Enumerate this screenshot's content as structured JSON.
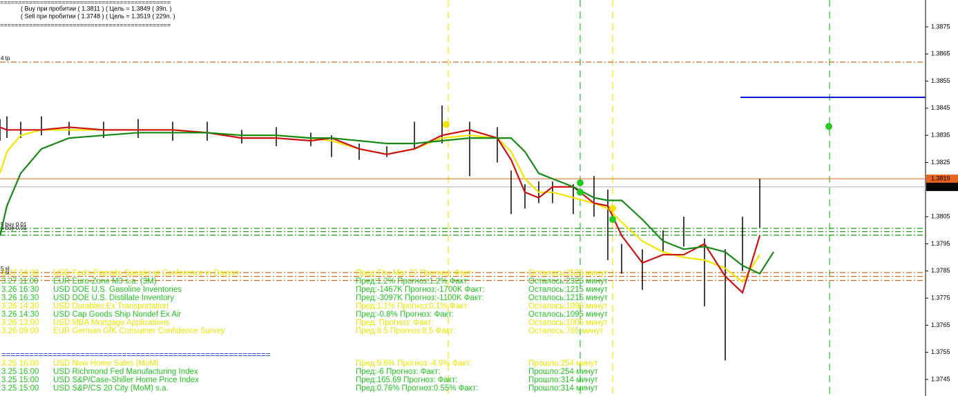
{
  "chart_data": {
    "type": "line",
    "x": [
      0,
      2,
      6,
      12,
      20,
      30,
      40,
      50,
      60,
      70,
      80,
      90,
      96,
      104,
      112,
      120,
      128,
      136,
      144,
      148,
      152,
      156,
      160,
      166,
      172,
      176,
      180,
      186,
      192,
      198,
      204,
      210,
      215,
      220,
      224
    ],
    "xlim": [
      0,
      268
    ],
    "ylim": [
      1.37389,
      1.38849
    ],
    "yticks": [
      1.3875,
      1.3865,
      1.3855,
      1.3845,
      1.3835,
      1.3825,
      1.3805,
      1.3795,
      1.3785,
      1.3775,
      1.3765,
      1.3755,
      1.3745
    ],
    "series": [
      {
        "color": "#f5e400",
        "values": [
          1.3821,
          1.3829,
          1.3835,
          1.3837,
          1.3837,
          1.3837,
          1.3837,
          1.3837,
          1.3836,
          1.3835,
          1.3835,
          1.3834,
          1.3833,
          1.383,
          1.3828,
          1.383,
          1.3834,
          1.3835,
          1.3834,
          1.3829,
          1.3819,
          1.3814,
          1.3814,
          1.3812,
          1.381,
          1.3808,
          1.3803,
          1.3796,
          1.3792,
          1.379,
          1.3789,
          1.3786,
          1.3781,
          1.3791,
          null
        ]
      },
      {
        "color": "#cc1010",
        "values": [
          1.3838,
          1.3837,
          1.3837,
          1.3837,
          1.3838,
          1.3837,
          1.3837,
          1.3837,
          1.3836,
          1.3834,
          1.3834,
          1.3833,
          1.3834,
          1.383,
          1.3828,
          1.383,
          1.3835,
          1.3837,
          1.3834,
          1.3826,
          1.3814,
          1.3812,
          1.3816,
          1.3816,
          1.381,
          1.3809,
          1.3798,
          1.3788,
          1.3791,
          1.3791,
          1.3795,
          1.3783,
          1.3777,
          1.3798,
          null
        ]
      },
      {
        "color": "#138a13",
        "values": [
          1.3798,
          1.3809,
          1.3821,
          1.383,
          1.3834,
          1.3835,
          1.3836,
          1.3836,
          1.3836,
          1.3835,
          1.3835,
          1.3834,
          1.3834,
          1.3833,
          1.3832,
          1.3832,
          1.3833,
          1.3834,
          1.3834,
          1.3834,
          1.3829,
          1.3821,
          1.3819,
          1.3816,
          1.3812,
          1.3811,
          1.3811,
          1.3804,
          1.3796,
          1.3793,
          1.3794,
          1.3792,
          1.3787,
          1.3784,
          1.3792
        ]
      }
    ],
    "bars": {
      "color": "#000000",
      "high": [
        1.3841,
        1.3842,
        1.384,
        1.3842,
        1.384,
        1.384,
        1.3841,
        1.384,
        1.384,
        1.3837,
        1.3838,
        1.3836,
        1.3835,
        1.3832,
        1.3831,
        1.384,
        1.3846,
        1.384,
        1.3838,
        1.3822,
        1.3817,
        1.3818,
        1.3818,
        1.3817,
        1.382,
        1.3815,
        1.3795,
        1.3793,
        1.38,
        1.3805,
        1.3797,
        1.3793,
        1.3805,
        1.3819,
        null
      ],
      "low": [
        1.3833,
        1.3834,
        1.3834,
        1.3835,
        1.3835,
        1.3834,
        1.3834,
        1.3833,
        1.3833,
        1.3832,
        1.3831,
        1.3831,
        1.3827,
        1.3826,
        1.3827,
        1.383,
        1.3832,
        1.382,
        1.3825,
        1.3806,
        1.3808,
        1.381,
        1.381,
        1.3806,
        1.3805,
        1.3789,
        1.3784,
        1.3778,
        1.3792,
        1.3794,
        1.3772,
        1.3752,
        1.3785,
        1.3801,
        null
      ]
    },
    "markers": [
      {
        "x": 168,
        "y": 1.38175,
        "color": "#22cc22"
      },
      {
        "x": 168,
        "y": 1.3814,
        "color": "#22cc22"
      },
      {
        "x": 177.4,
        "y": 1.3804,
        "color": "#22cc22"
      },
      {
        "x": 240,
        "y": 1.38383,
        "color": "#22cc22"
      },
      {
        "x": 129.2,
        "y": 1.3839,
        "color": "#f5e400"
      },
      {
        "x": 177.4,
        "y": 1.38081,
        "color": "#f5e400"
      }
    ],
    "levels": [
      {
        "value": 1.3862,
        "color": "#d2691e",
        "label": "4 tp"
      },
      {
        "value": 1.38007,
        "color": "#1a9a1a",
        "label": "5 buy 0.01"
      },
      {
        "value": 1.37995,
        "color": "#1a9a1a",
        "label": "6 buy 0.01"
      },
      {
        "value": 1.37982,
        "color": "#1a9a1a"
      },
      {
        "value": 1.37844,
        "color": "#d2691e",
        "label": "5 sl"
      },
      {
        "value": 1.3783,
        "color": "#d2691e",
        "label": "7 sl"
      },
      {
        "value": 1.37815,
        "color": "#d2691e"
      }
    ],
    "target": {
      "value": 1.3849,
      "x_start": 214.4,
      "color": "#0000cc"
    },
    "price_labels": [
      {
        "value": 1.3819,
        "color": "#e8641e"
      },
      {
        "value": 1.3816,
        "color": "#000000"
      }
    ]
  },
  "info": {
    "separator": "===============================================",
    "lines": [
      "( Buy при пробитии ( 1.3811 )   ( Цель = 1.3849 ( 39п. )",
      "( Sell при пробитии ( 1.3748 )   ( Цель = 1.3519 ( 229п. )"
    ]
  },
  "news": {
    "separator": "==========================================================",
    "upcoming": [
      {
        "color": "#e6e600",
        "cells": [
          "3.27 14:30",
          "USD Fed's Pianalto Speaks at Conference in Dayton",
          "Пред:Thu Mar 27 Прогноз: Факт:",
          "Осталось:2535 минут"
        ]
      },
      {
        "color": "#22c322",
        "cells": [
          "3.27 11:00",
          "EUR Euro-Zone M3 s.a. (3M)",
          "Пред:1.2% Прогноз:1.2% Факт:",
          "Осталось:2325 минут"
        ]
      },
      {
        "color": "#22c322",
        "cells": [
          "3.26 16:30",
          "USD DOE U.S. Gasoline Inventories",
          "Пред:-1467K Прогноз:-1700K Факт:",
          "Осталось:1215 минут"
        ]
      },
      {
        "color": "#22c322",
        "cells": [
          "3.26 16:30",
          "USD DOE U.S. Distillate Inventory",
          "Пред:-3097K Прогноз:-1100K Факт:",
          "Осталось:1215 минут"
        ]
      },
      {
        "color": "#e6e600",
        "cells": [
          "3.26 14:30",
          "USD Durables Ex Transportation",
          "Пред:1.1% Прогноз:0.1% Факт:",
          "Осталось:1095 минут"
        ]
      },
      {
        "color": "#22c322",
        "cells": [
          "3.26 14:30",
          "USD Cap Goods Ship Nondef Ex Air",
          "Пред:-0.8% Прогноз: Факт:",
          "Осталось:1095 минут"
        ]
      },
      {
        "color": "#e6e600",
        "cells": [
          "3.26 13:00",
          "USD MBA Mortgage Applications",
          "Пред: Прогноз: Факт:",
          "Осталось:1005 минут"
        ]
      },
      {
        "color": "#e6e600",
        "cells": [
          "3.26 09:00",
          "EUR German GfK Consumer Confidence Survey",
          "Пред:8.5 Прогноз:8.5 Факт:",
          "Осталось:765 минут"
        ]
      }
    ],
    "past": [
      {
        "color": "#e6e600",
        "cells": [
          "3.25 16:00",
          "USD New Home Sales (MoM)",
          "Пред:9.6% Прогноз:-4.9% Факт:",
          "Прошло:254 минут"
        ]
      },
      {
        "color": "#22c322",
        "cells": [
          "3.25 16:00",
          "USD Richmond Fed Manufacturing Index",
          "Пред:-6 Прогноз: Факт:",
          "Прошло:254 минут"
        ]
      },
      {
        "color": "#22c322",
        "cells": [
          "3.25 15:00",
          "USD S&P/Case-Shiller Home Price Index",
          "Пред:165.69 Прогноз: Факт:",
          "Прошло:314 минут"
        ]
      },
      {
        "color": "#22c322",
        "cells": [
          "3.25 15:00",
          "USD S&P/CS 20 City (MoM) s.a.",
          "Пред:0.76% Прогноз:0.55% Факт:",
          "Прошло:314 минут"
        ]
      }
    ]
  }
}
